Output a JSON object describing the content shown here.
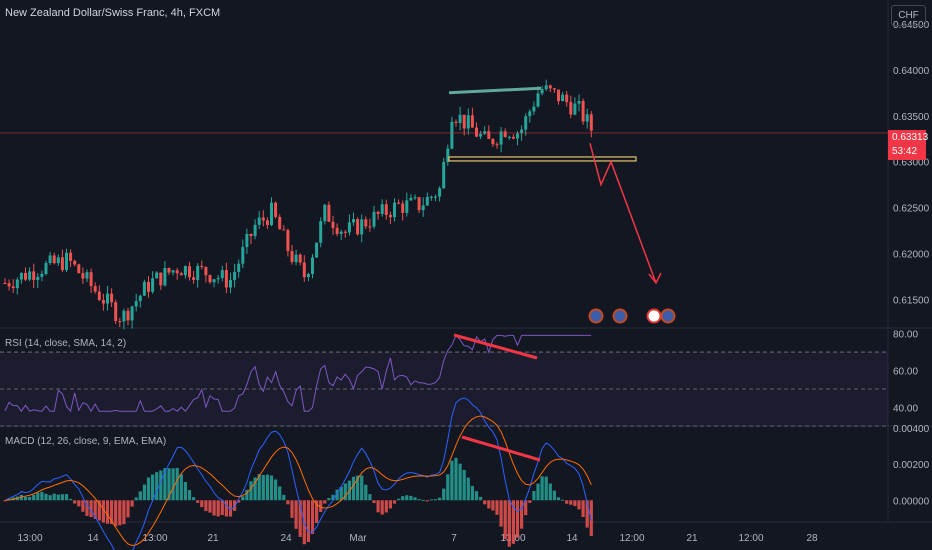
{
  "header": {
    "title": "New Zealand Dollar/Swiss Franc, 4h, FXCM",
    "currency_button": "CHF"
  },
  "price_tag": {
    "price": "0.63313",
    "countdown": "53:42"
  },
  "colors": {
    "up": "#26a69a",
    "down": "#ef5350",
    "rsi": "#7e57c2",
    "macd": "#2962ff",
    "signal": "#ff6d00",
    "annotation_red": "#f23645",
    "trendline_teal": "#5fa99a",
    "support_yellow": "#e6c46b"
  },
  "x_axis_labels": [
    "13:00",
    "14",
    "13:00",
    "21",
    "24",
    "Mar",
    "7",
    "13:00",
    "14",
    "12:00",
    "21",
    "12:00",
    "28"
  ],
  "chart_data": [
    {
      "type": "candlestick",
      "title": "New Zealand Dollar/Swiss Franc, 4h, FXCM",
      "y_axis_ticks": [
        0.645,
        0.64,
        0.635,
        0.63,
        0.625,
        0.62,
        0.615
      ],
      "y_tick_labels": [
        "0.64500",
        "0.64000",
        "0.63500",
        "0.63000",
        "0.62500",
        "0.62000",
        "0.61500"
      ],
      "ylim": [
        0.6119,
        0.6476
      ],
      "last_price": 0.63313,
      "annotations": {
        "teal_trendline": [
          0.6375,
          0.638
        ],
        "support_line": 0.6303,
        "projection_path": [
          0.632,
          0.6275,
          0.63,
          0.6168
        ]
      },
      "event_markers": [
        "flag",
        "flag",
        "flag",
        "flag"
      ]
    },
    {
      "type": "line",
      "title": "RSI (14, close, SMA, 14, 2)",
      "y_axis_ticks": [
        80,
        60,
        40
      ],
      "y_tick_labels": [
        "80.00",
        "60.00",
        "40.00"
      ],
      "ylim": [
        30,
        83
      ],
      "band_levels": [
        70,
        50,
        30
      ]
    },
    {
      "type": "bar",
      "title": "MACD (12, 26, close, 9, EMA, EMA)",
      "y_axis_ticks": [
        0.004,
        0.002,
        0.0
      ],
      "y_tick_labels": [
        "0.00400",
        "0.00200",
        "0.00000"
      ],
      "ylim": [
        -0.0012,
        0.0041
      ]
    }
  ]
}
